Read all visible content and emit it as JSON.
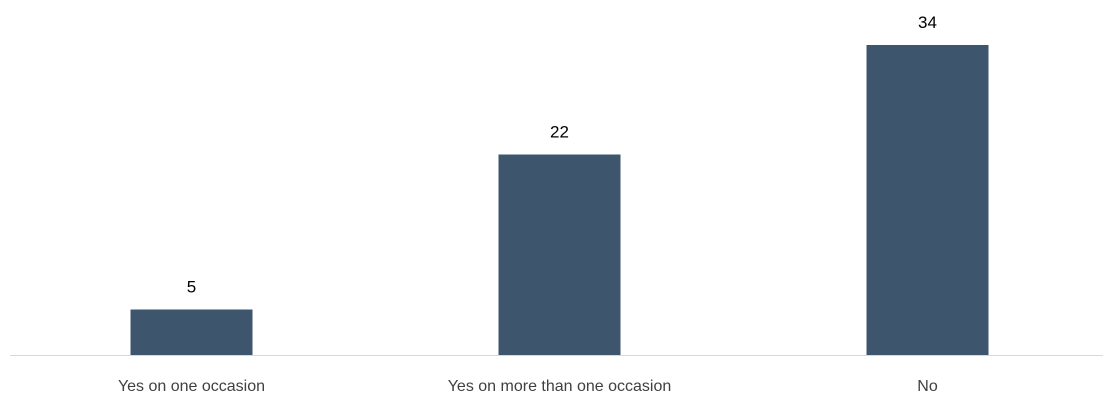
{
  "chart_data": {
    "type": "bar",
    "categories": [
      "Yes on one occasion",
      "Yes on more than one occasion",
      "No"
    ],
    "values": [
      5,
      22,
      34
    ],
    "data_labels": [
      "5",
      "22",
      "34"
    ],
    "title": "",
    "xlabel": "",
    "ylabel": "",
    "ylim": [
      0,
      36
    ],
    "grid": false,
    "legend": "none",
    "colors": {
      "bar": "#3d566e",
      "axis": "#d9d9d9",
      "label": "#404040",
      "value_label": "#000000"
    }
  }
}
